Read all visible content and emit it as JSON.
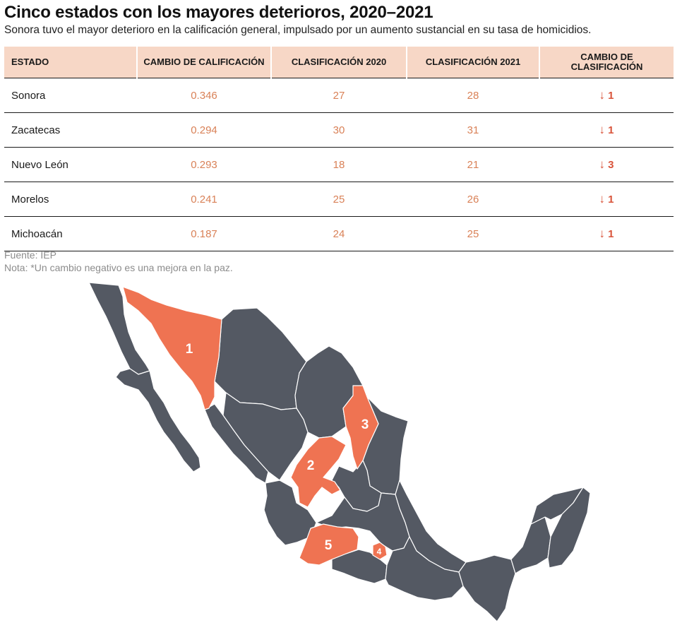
{
  "title": "Cinco estados con los mayores deterioros, 2020–2021",
  "subtitle": "Sonora tuvo el mayor deterioro en la calificación general, impulsado por un aumento sustancial en su tasa de homicidios.",
  "table": {
    "headers": [
      "ESTADO",
      "CAMBIO DE CALIFICACIÓN",
      "CLASIFICACIÓN 2020",
      "CLASIFICACIÓN 2021",
      "CAMBIO DE CLASIFICACIÓN"
    ],
    "rows": [
      {
        "estado": "Sonora",
        "cambio": "0.346",
        "c2020": "27",
        "c2021": "28",
        "arrow": "↓",
        "cambio_clas": "1"
      },
      {
        "estado": "Zacatecas",
        "cambio": "0.294",
        "c2020": "30",
        "c2021": "31",
        "arrow": "↓",
        "cambio_clas": "1"
      },
      {
        "estado": "Nuevo León",
        "cambio": "0.293",
        "c2020": "18",
        "c2021": "21",
        "arrow": "↓",
        "cambio_clas": "3"
      },
      {
        "estado": "Morelos",
        "cambio": "0.241",
        "c2020": "25",
        "c2021": "26",
        "arrow": "↓",
        "cambio_clas": "1"
      },
      {
        "estado": "Michoacán",
        "cambio": "0.187",
        "c2020": "24",
        "c2021": "25",
        "arrow": "↓",
        "cambio_clas": "1"
      }
    ]
  },
  "source": "Fuente: IEP",
  "note": "Nota: *Un cambio negativo es una mejora en la paz.",
  "map": {
    "labels": [
      "1",
      "2",
      "3",
      "4",
      "5"
    ],
    "highlight_color": "#ef7352",
    "base_color": "#545963"
  }
}
